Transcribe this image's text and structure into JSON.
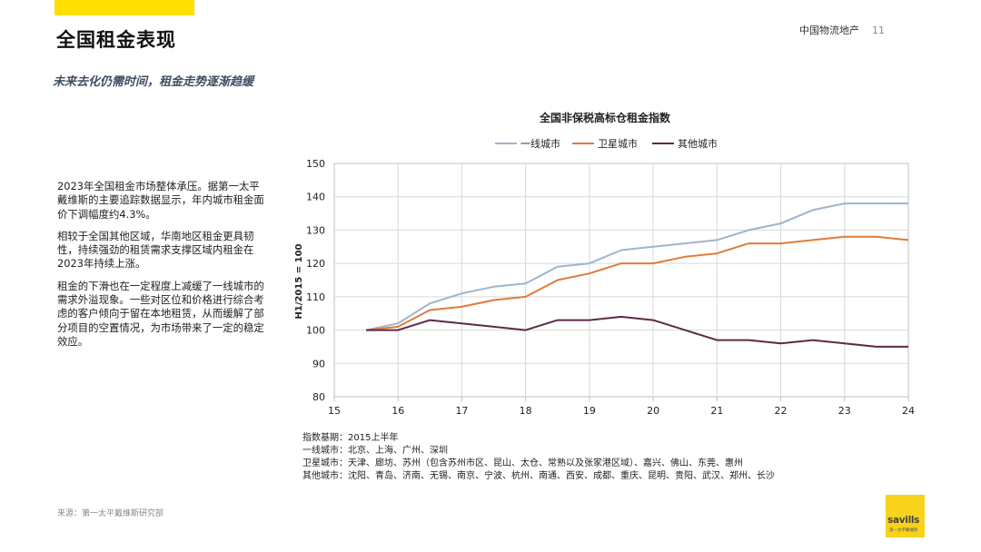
{
  "header": {
    "title": "全国租金表现",
    "section": "中国物流地产",
    "page_number": "11"
  },
  "subtitle": "未来去化仍需时间，租金走势逐渐趋缓",
  "body_paragraphs": [
    "2023年全国租金市场整体承压。据第一太平戴维斯的主要追踪数据显示，年内城市租金面价下调幅度约4.3%。",
    "相较于全国其他区域，华南地区租金更具韧性，持续强劲的租赁需求支撑区域内租金在2023年持续上涨。",
    "租金的下滑也在一定程度上减缓了一线城市的需求外溢现象。一些对区位和价格进行综合考虑的客户倾向于留在本地租赁，从而缓解了部分项目的空置情况，为市场带来了一定的稳定效应。"
  ],
  "notes": [
    "指数基期：2015上半年",
    "一线城市：北京、上海、广州、深圳",
    "卫星城市：天津、廊坊、苏州（包含苏州市区、昆山、太仓、常熟以及张家港区域）、嘉兴、佛山、东莞、惠州",
    "其他城市：沈阳、青岛、济南、无锡、南京、宁波、杭州、南通、西安、成都、重庆、昆明、贵阳、武汉、郑州、长沙"
  ],
  "source": "来源：第一太平戴维斯研究部",
  "logo": {
    "word": "savills",
    "tagline": "第一太平戴维斯"
  },
  "chart_data": {
    "type": "line",
    "title": "全国非保税高标仓租金指数",
    "xlabel": "",
    "ylabel": "H1/2015 = 100",
    "xlim": [
      15,
      24
    ],
    "ylim": [
      80,
      150
    ],
    "xticks": [
      15,
      16,
      17,
      18,
      19,
      20,
      21,
      22,
      23,
      24
    ],
    "yticks": [
      80,
      90,
      100,
      110,
      120,
      130,
      140,
      150
    ],
    "grid": true,
    "legend_position": "top",
    "x": [
      15.5,
      16,
      16.5,
      17,
      17.5,
      18,
      18.5,
      19,
      19.5,
      20,
      20.5,
      21,
      21.5,
      22,
      22.5,
      23,
      23.5,
      24
    ],
    "series": [
      {
        "name": "一线城市",
        "color": "#9fb4cc",
        "values": [
          100,
          102,
          108,
          111,
          113,
          114,
          119,
          120,
          124,
          125,
          126,
          127,
          130,
          132,
          136,
          138,
          138,
          138
        ]
      },
      {
        "name": "卫星城市",
        "color": "#e07b39",
        "values": [
          100,
          101,
          106,
          107,
          109,
          110,
          115,
          117,
          120,
          120,
          122,
          123,
          126,
          126,
          127,
          128,
          128,
          127
        ]
      },
      {
        "name": "其他城市",
        "color": "#5c2a4a",
        "values": [
          100,
          100,
          103,
          102,
          101,
          100,
          103,
          103,
          104,
          103,
          100,
          97,
          97,
          96,
          97,
          96,
          95,
          95
        ]
      }
    ]
  }
}
